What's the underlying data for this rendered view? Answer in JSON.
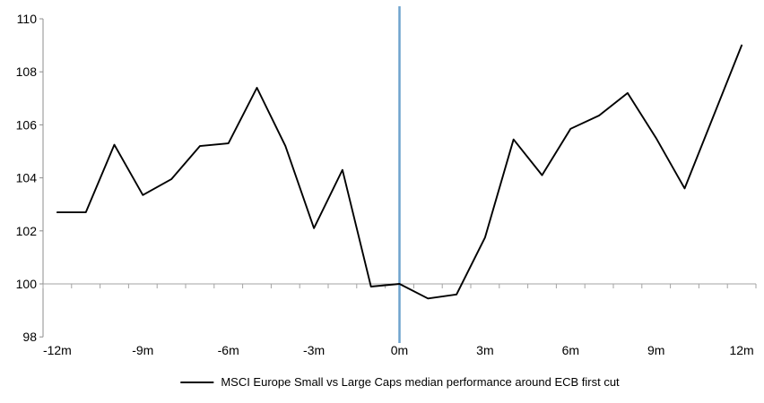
{
  "chart_data": {
    "type": "line",
    "title": "",
    "xlabel": "",
    "ylabel": "",
    "categories": [
      "-12m",
      "-11m",
      "-10m",
      "-9m",
      "-8m",
      "-7m",
      "-6m",
      "-5m",
      "-4m",
      "-3m",
      "-2m",
      "-1m",
      "0m",
      "1m",
      "2m",
      "3m",
      "4m",
      "5m",
      "6m",
      "7m",
      "8m",
      "9m",
      "10m",
      "11m",
      "12m"
    ],
    "series": [
      {
        "name": "MSCI Europe Small vs Large Caps median performance around ECB first cut",
        "color": "#000000",
        "values": [
          102.7,
          102.7,
          105.25,
          103.35,
          103.95,
          105.2,
          105.3,
          107.4,
          105.2,
          102.1,
          104.3,
          99.9,
          100.0,
          99.45,
          99.6,
          101.75,
          105.45,
          104.1,
          105.85,
          106.35,
          107.2,
          105.5,
          103.6,
          106.3,
          109.0
        ]
      }
    ],
    "x_tick_labels": [
      "-12m",
      "-9m",
      "-6m",
      "-3m",
      "0m",
      "3m",
      "6m",
      "9m",
      "12m"
    ],
    "x_tick_indices": [
      0,
      3,
      6,
      9,
      12,
      15,
      18,
      21,
      24
    ],
    "y_ticks": [
      98,
      100,
      102,
      104,
      106,
      108,
      110
    ],
    "ylim": [
      98,
      110
    ],
    "baseline_value": 100,
    "event_line_category": "0m",
    "event_line_index": 12,
    "grid": "baseline-only",
    "legend_position": "bottom-center",
    "colors": {
      "series_line": "#000000",
      "event_line": "#6FA3CE",
      "axis_line": "#8C8C8C",
      "baseline_line": "#A3A3A3",
      "tick_label": "#000000",
      "background": "#FFFFFF"
    }
  }
}
